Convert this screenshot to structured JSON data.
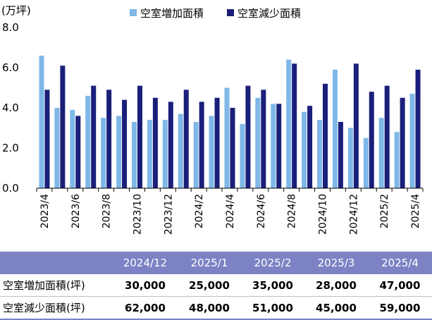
{
  "chart_data": {
    "type": "bar",
    "ylabel": "(万坪)",
    "ylim": [
      0,
      8
    ],
    "yticks": [
      "0.0",
      "2.0",
      "4.0",
      "6.0",
      "8.0"
    ],
    "legend_position": "top",
    "categories": [
      "2023/4",
      "2023/5",
      "2023/6",
      "2023/7",
      "2023/8",
      "2023/9",
      "2023/10",
      "2023/11",
      "2023/12",
      "2024/1",
      "2024/2",
      "2024/3",
      "2024/4",
      "2024/5",
      "2024/6",
      "2024/7",
      "2024/8",
      "2024/9",
      "2024/10",
      "2024/11",
      "2024/12",
      "2025/1",
      "2025/2",
      "2025/3",
      "2025/4"
    ],
    "xtick_labels": [
      "2023/4",
      "2023/6",
      "2023/8",
      "2023/10",
      "2023/12",
      "2024/2",
      "2024/4",
      "2024/6",
      "2024/8",
      "2024/10",
      "2024/12",
      "2025/2",
      "2025/4"
    ],
    "series": [
      {
        "name": "空室増加面積",
        "color": "#7fb8e8",
        "values": [
          6.6,
          4.0,
          3.9,
          4.6,
          3.5,
          3.6,
          3.3,
          3.4,
          3.4,
          3.7,
          3.3,
          3.6,
          5.0,
          3.2,
          4.5,
          4.2,
          6.4,
          3.8,
          3.4,
          5.9,
          3.0,
          2.5,
          3.5,
          2.8,
          4.7
        ]
      },
      {
        "name": "空室減少面積",
        "color": "#1a1f7a",
        "values": [
          4.9,
          6.1,
          3.6,
          5.1,
          4.9,
          4.4,
          5.1,
          4.5,
          4.3,
          4.9,
          4.3,
          4.5,
          4.0,
          5.1,
          4.9,
          4.2,
          6.2,
          4.1,
          5.2,
          3.3,
          6.2,
          4.8,
          5.1,
          4.5,
          5.9
        ]
      }
    ]
  },
  "table": {
    "headers": [
      "",
      "2024/12",
      "2025/1",
      "2025/2",
      "2025/3",
      "2025/4"
    ],
    "rows": [
      {
        "label": "空室増加面積(坪)",
        "values": [
          "30,000",
          "25,000",
          "35,000",
          "28,000",
          "47,000"
        ]
      },
      {
        "label": "空室減少面積(坪)",
        "values": [
          "62,000",
          "48,000",
          "51,000",
          "45,000",
          "59,000"
        ]
      }
    ]
  }
}
